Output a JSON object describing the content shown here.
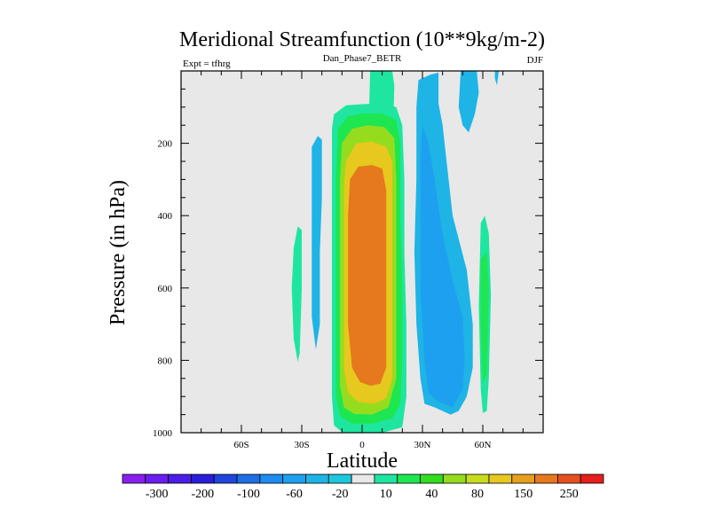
{
  "chart_data": {
    "type": "contour",
    "title": "Meridional Streamfunction (10**9kg/m-2)",
    "left_label": "Expt = tfhrg",
    "center_label": "Dan_Phase7_BETR",
    "right_label": "DJF",
    "xlabel": "Latitude",
    "ylabel": "Pressure (in hPa)",
    "xlim": [
      -90,
      90
    ],
    "ylim": [
      1000,
      0
    ],
    "x_ticks": [
      {
        "value": -60,
        "label": "60S"
      },
      {
        "value": -30,
        "label": "30S"
      },
      {
        "value": 0,
        "label": "0"
      },
      {
        "value": 30,
        "label": "30N"
      },
      {
        "value": 60,
        "label": "60N"
      }
    ],
    "y_ticks": [
      {
        "value": 200,
        "label": "200"
      },
      {
        "value": 400,
        "label": "400"
      },
      {
        "value": 600,
        "label": "600"
      },
      {
        "value": 800,
        "label": "800"
      },
      {
        "value": 1000,
        "label": "1000"
      }
    ],
    "colorbar": {
      "colors": [
        "#8a1ef0",
        "#6a1ef0",
        "#4a1ee6",
        "#2a1ed8",
        "#1e46dc",
        "#1e6ee6",
        "#1e8cf0",
        "#1ea0f0",
        "#1eb4e6",
        "#1ec8dc",
        "#e8e8e8",
        "#1ee6a0",
        "#1ee650",
        "#32dc1e",
        "#96dc1e",
        "#c8dc1e",
        "#e6c81e",
        "#e6a01e",
        "#e6781e",
        "#e6501e",
        "#e61e1e"
      ],
      "labels": [
        "-300",
        "-200",
        "-100",
        "-60",
        "-20",
        "10",
        "40",
        "80",
        "150",
        "250"
      ],
      "label_positions": [
        0.5,
        2.5,
        4.5,
        6.5,
        8.5,
        10.5,
        12.5,
        14.5,
        16.5,
        18.5
      ]
    },
    "levels": [
      {
        "value": 10,
        "color": "#1ee6a0"
      },
      {
        "value": 40,
        "color": "#1ee650"
      },
      {
        "value": 80,
        "color": "#96dc1e"
      },
      {
        "value": 150,
        "color": "#e6c81e"
      },
      {
        "value": 250,
        "color": "#e6781e"
      },
      {
        "value": -20,
        "color": "#1eb4e6"
      },
      {
        "value": -60,
        "color": "#1ea0f0"
      }
    ],
    "cells": [
      {
        "sign": "positive",
        "center_lat": 5,
        "lat_range": [
          -15,
          25
        ],
        "p_range": [
          30,
          1000
        ],
        "peak": 250
      },
      {
        "sign": "negative",
        "center_lat": 45,
        "lat_range": [
          25,
          65
        ],
        "p_range": [
          0,
          980
        ],
        "peak": -60
      },
      {
        "sign": "positive",
        "center_lat": 62,
        "lat_range": [
          58,
          65
        ],
        "p_range": [
          400,
          950
        ],
        "peak": 10
      },
      {
        "sign": "positive",
        "center_lat": -33,
        "lat_range": [
          -35,
          -30
        ],
        "p_range": [
          400,
          800
        ],
        "peak": 10
      },
      {
        "sign": "negative",
        "center_lat": -24,
        "lat_range": [
          -25,
          -20
        ],
        "p_range": [
          150,
          780
        ],
        "peak": -20
      }
    ]
  }
}
